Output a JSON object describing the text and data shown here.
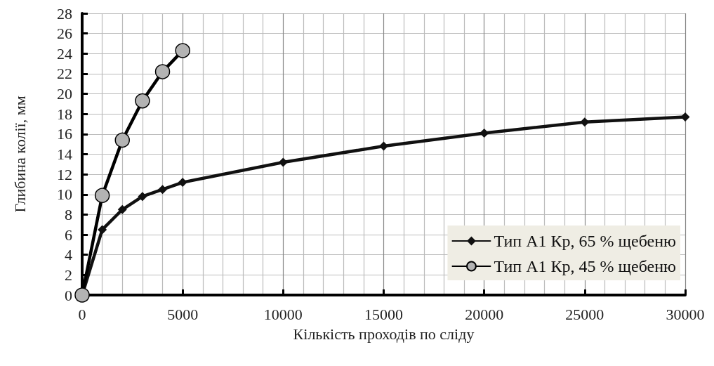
{
  "chart_data": {
    "type": "line",
    "xlabel": "Кількість проходів по сліду",
    "ylabel": "Глибина колії, мм",
    "xlim": [
      0,
      30000
    ],
    "xticks": [
      0,
      5000,
      10000,
      15000,
      20000,
      25000,
      30000
    ],
    "ylim": [
      0,
      28
    ],
    "yticks": [
      0,
      2,
      4,
      6,
      8,
      10,
      12,
      14,
      16,
      18,
      20,
      22,
      24,
      26,
      28
    ],
    "grid": true,
    "legend": "bottom right",
    "line_style": "solid",
    "series": [
      {
        "name": "Тип А1 Кр, 65 % щебеню",
        "color": "#111111",
        "marker": "diamond",
        "x": [
          0,
          1000,
          2000,
          3000,
          4000,
          5000,
          10000,
          15000,
          20000,
          25000,
          30000
        ],
        "values": [
          0,
          6.5,
          8.5,
          9.8,
          10.5,
          11.2,
          13.2,
          14.8,
          16.1,
          17.2,
          17.7
        ]
      },
      {
        "name": "Тип А1 Кр, 45 % щебеню",
        "color": "#000000",
        "marker": "circle",
        "x": [
          0,
          1000,
          2000,
          3000,
          4000,
          5000
        ],
        "values": [
          0,
          9.9,
          15.4,
          19.3,
          22.2,
          24.3
        ]
      }
    ]
  }
}
